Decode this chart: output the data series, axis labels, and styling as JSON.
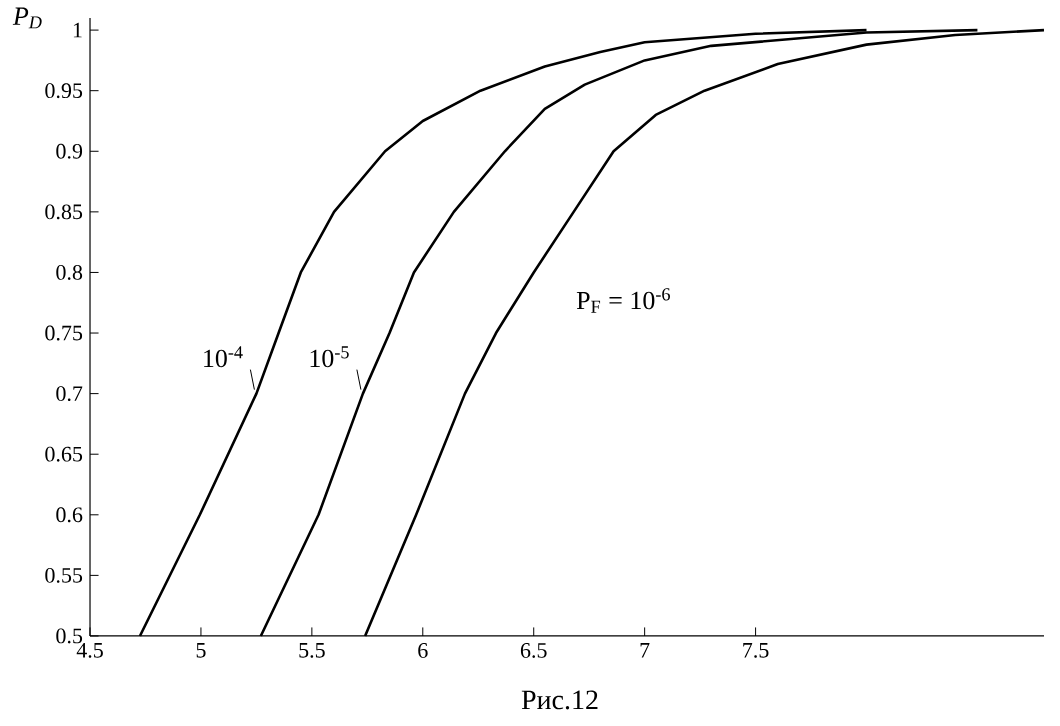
{
  "chart_data": {
    "type": "line",
    "ylabel": "P$_{D}$",
    "annotations": [
      "Рис.12"
    ],
    "xlim": [
      4.5,
      8.8
    ],
    "ylim": [
      0.5,
      1.01
    ],
    "xticks": [
      {
        "value": 4.5,
        "label": "4.5"
      },
      5,
      5.5,
      6,
      6.5,
      7,
      7.5
    ],
    "yticks": [
      0.5,
      0.55,
      0.6,
      0.65,
      0.7,
      0.75,
      0.8,
      0.85,
      0.9,
      0.95,
      1
    ],
    "series": [
      {
        "name": "10$^{-4}$",
        "color": "#000000",
        "x": [
          4.725,
          4.995,
          5.25,
          5.35,
          5.45,
          5.6,
          5.83,
          6.0,
          6.26,
          6.55,
          6.8,
          7.0,
          7.5,
          8.0
        ],
        "values": [
          0.5,
          0.6,
          0.7,
          0.75,
          0.8,
          0.85,
          0.9,
          0.925,
          0.95,
          0.97,
          0.982,
          0.99,
          0.997,
          1.0
        ]
      },
      {
        "name": "10$^{-5}$",
        "color": "#000000",
        "x": [
          5.27,
          5.53,
          5.73,
          5.85,
          5.96,
          6.14,
          6.37,
          6.55,
          6.73,
          7.0,
          7.3,
          8.0,
          8.5
        ],
        "values": [
          0.5,
          0.6,
          0.7,
          0.75,
          0.8,
          0.85,
          0.9,
          0.935,
          0.955,
          0.975,
          0.987,
          0.998,
          1.0
        ]
      },
      {
        "name": "P$_{F}$ = 10$^{-6}$",
        "color": "#000000",
        "x": [
          5.74,
          5.97,
          6.19,
          6.33,
          6.5,
          6.68,
          6.86,
          7.05,
          7.27,
          7.6,
          8.0,
          8.4,
          8.8
        ],
        "values": [
          0.5,
          0.6,
          0.7,
          0.75,
          0.8,
          0.85,
          0.9,
          0.93,
          0.95,
          0.972,
          0.988,
          0.996,
          1.0
        ]
      }
    ]
  }
}
